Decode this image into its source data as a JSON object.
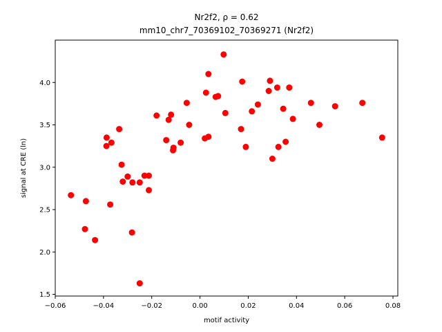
{
  "chart_data": {
    "type": "scatter",
    "title_line1": "Nr2f2, ρ = 0.62",
    "title_line2": "mm10_chr7_70369102_70369271 (Nr2f2)",
    "xlabel": "motif activity",
    "ylabel": "signal at CRE (ln)",
    "xlim": [
      -0.06,
      0.082
    ],
    "ylim": [
      1.48,
      4.5
    ],
    "xticks": [
      -0.06,
      -0.04,
      -0.02,
      0.0,
      0.02,
      0.04,
      0.06,
      0.08
    ],
    "xtick_labels": [
      "−0.06",
      "−0.04",
      "−0.02",
      "0.00",
      "0.02",
      "0.04",
      "0.06",
      "0.08"
    ],
    "yticks": [
      1.5,
      2.0,
      2.5,
      3.0,
      3.5,
      4.0
    ],
    "ytick_labels": [
      "1.5",
      "2.0",
      "2.5",
      "3.0",
      "3.5",
      "4.0"
    ],
    "grid": false,
    "marker_color": "#ff0000",
    "points": [
      {
        "x": -0.0535,
        "y": 2.67
      },
      {
        "x": -0.0473,
        "y": 2.6
      },
      {
        "x": -0.0477,
        "y": 2.27
      },
      {
        "x": -0.0435,
        "y": 2.14
      },
      {
        "x": -0.0387,
        "y": 3.35
      },
      {
        "x": -0.0388,
        "y": 3.25
      },
      {
        "x": -0.0367,
        "y": 3.29
      },
      {
        "x": -0.0372,
        "y": 2.56
      },
      {
        "x": -0.0335,
        "y": 3.45
      },
      {
        "x": -0.0325,
        "y": 3.03
      },
      {
        "x": -0.032,
        "y": 2.83
      },
      {
        "x": -0.03,
        "y": 2.89
      },
      {
        "x": -0.028,
        "y": 2.82
      },
      {
        "x": -0.0282,
        "y": 2.23
      },
      {
        "x": -0.025,
        "y": 2.82
      },
      {
        "x": -0.023,
        "y": 2.9
      },
      {
        "x": -0.0212,
        "y": 2.9
      },
      {
        "x": -0.0212,
        "y": 2.73
      },
      {
        "x": -0.025,
        "y": 1.63
      },
      {
        "x": -0.018,
        "y": 3.61
      },
      {
        "x": -0.014,
        "y": 3.32
      },
      {
        "x": -0.013,
        "y": 3.56
      },
      {
        "x": -0.012,
        "y": 3.62
      },
      {
        "x": -0.0112,
        "y": 3.2
      },
      {
        "x": -0.011,
        "y": 3.23
      },
      {
        "x": -0.008,
        "y": 3.29
      },
      {
        "x": -0.0055,
        "y": 3.76
      },
      {
        "x": -0.0045,
        "y": 3.5
      },
      {
        "x": 0.002,
        "y": 3.34
      },
      {
        "x": 0.0025,
        "y": 3.88
      },
      {
        "x": 0.0035,
        "y": 4.1
      },
      {
        "x": 0.0035,
        "y": 3.36
      },
      {
        "x": 0.0065,
        "y": 3.83
      },
      {
        "x": 0.0075,
        "y": 3.84
      },
      {
        "x": 0.0098,
        "y": 4.33
      },
      {
        "x": 0.0105,
        "y": 3.64
      },
      {
        "x": 0.017,
        "y": 3.45
      },
      {
        "x": 0.0175,
        "y": 4.01
      },
      {
        "x": 0.019,
        "y": 3.24
      },
      {
        "x": 0.0215,
        "y": 3.66
      },
      {
        "x": 0.024,
        "y": 3.74
      },
      {
        "x": 0.0285,
        "y": 3.9
      },
      {
        "x": 0.029,
        "y": 4.02
      },
      {
        "x": 0.03,
        "y": 3.1
      },
      {
        "x": 0.032,
        "y": 3.94
      },
      {
        "x": 0.0325,
        "y": 3.24
      },
      {
        "x": 0.0345,
        "y": 3.69
      },
      {
        "x": 0.0355,
        "y": 3.3
      },
      {
        "x": 0.037,
        "y": 3.94
      },
      {
        "x": 0.0385,
        "y": 3.57
      },
      {
        "x": 0.046,
        "y": 3.76
      },
      {
        "x": 0.0495,
        "y": 3.5
      },
      {
        "x": 0.056,
        "y": 3.72
      },
      {
        "x": 0.0673,
        "y": 3.76
      },
      {
        "x": 0.0755,
        "y": 3.35
      }
    ]
  }
}
